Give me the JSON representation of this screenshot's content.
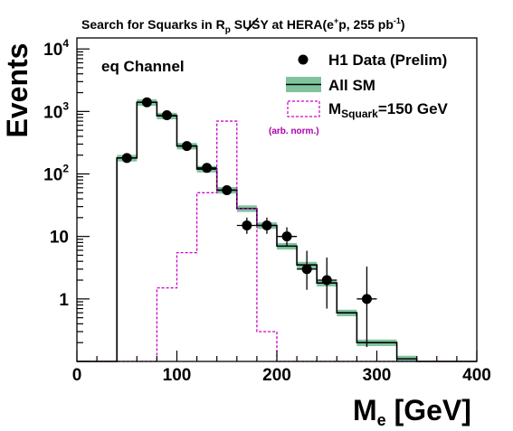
{
  "chart_data": {
    "type": "histogram",
    "title_main": "Search for Squarks in ",
    "title_rp_symbol": "R",
    "title_rp_sub": "p",
    "title_susy": " SUSY at HERA(e",
    "title_plus": "+",
    "title_p": "p, 255 pb",
    "title_exp": "-1",
    "title_close": ")",
    "channel_label": "eq Channel",
    "xlabel_main": "M",
    "xlabel_sub": "e",
    "xlabel_unit": " [GeV]",
    "ylabel": "Events",
    "xlim": [
      0,
      400
    ],
    "ylim": [
      0.1,
      15000
    ],
    "yscale": "log",
    "x_ticks": [
      0,
      100,
      200,
      300,
      400
    ],
    "x_tick_labels": [
      "0",
      "100",
      "200",
      "300",
      "400"
    ],
    "y_tick_labels": [
      {
        "value": 1,
        "base": "1",
        "exp": ""
      },
      {
        "value": 10,
        "base": "10",
        "exp": ""
      },
      {
        "value": 100,
        "base": "10",
        "exp": "2"
      },
      {
        "value": 1000,
        "base": "10",
        "exp": "3"
      },
      {
        "value": 10000,
        "base": "10",
        "exp": "4"
      }
    ],
    "bin_edges": [
      0,
      20,
      40,
      60,
      80,
      100,
      120,
      140,
      160,
      180,
      200,
      220,
      240,
      260,
      280,
      300,
      320,
      340,
      360,
      380,
      400
    ],
    "sm_values": [
      0,
      0,
      180,
      1400,
      850,
      280,
      120,
      55,
      28,
      15,
      7,
      3.5,
      1.8,
      0.6,
      0.2,
      0.2,
      0.11,
      0,
      0,
      0
    ],
    "sm_band_rel": 0.12,
    "signal_values": [
      0,
      0,
      0,
      0,
      1.5,
      5.5,
      50,
      700,
      28,
      0.3,
      0.1,
      0,
      0,
      0,
      0,
      0,
      0,
      0,
      0,
      0
    ],
    "data_points": [
      {
        "x": 50,
        "y": 180,
        "yerr_lo": 13,
        "yerr_hi": 14
      },
      {
        "x": 70,
        "y": 1400,
        "yerr_lo": 37,
        "yerr_hi": 38
      },
      {
        "x": 90,
        "y": 870,
        "yerr_lo": 29,
        "yerr_hi": 30
      },
      {
        "x": 110,
        "y": 280,
        "yerr_lo": 17,
        "yerr_hi": 17
      },
      {
        "x": 130,
        "y": 125,
        "yerr_lo": 11,
        "yerr_hi": 11
      },
      {
        "x": 150,
        "y": 55,
        "yerr_lo": 7,
        "yerr_hi": 8
      },
      {
        "x": 170,
        "y": 15,
        "yerr_lo": 4,
        "yerr_hi": 5
      },
      {
        "x": 190,
        "y": 15,
        "yerr_lo": 4,
        "yerr_hi": 5
      },
      {
        "x": 210,
        "y": 10,
        "yerr_lo": 3,
        "yerr_hi": 4
      },
      {
        "x": 230,
        "y": 3,
        "yerr_lo": 1.6,
        "yerr_hi": 2.9
      },
      {
        "x": 250,
        "y": 2,
        "yerr_lo": 1.3,
        "yerr_hi": 2.6
      },
      {
        "x": 290,
        "y": 1,
        "yerr_lo": 0.83,
        "yerr_hi": 2.3
      }
    ],
    "data_xerr": 10,
    "legend": {
      "position": "top-right",
      "data_label": "H1 Data (Prelim)",
      "sm_label": "All SM",
      "signal_label_main": "M",
      "signal_label_sub": "Squark",
      "signal_label_rest": "=150 GeV",
      "arb_norm": "(arb. norm.)"
    },
    "colors": {
      "sm_band": "#7fc49f",
      "sm_line": "#000000",
      "signal": "#cc00cc",
      "data": "#000000",
      "arb_norm_text": "#aa00aa"
    }
  }
}
